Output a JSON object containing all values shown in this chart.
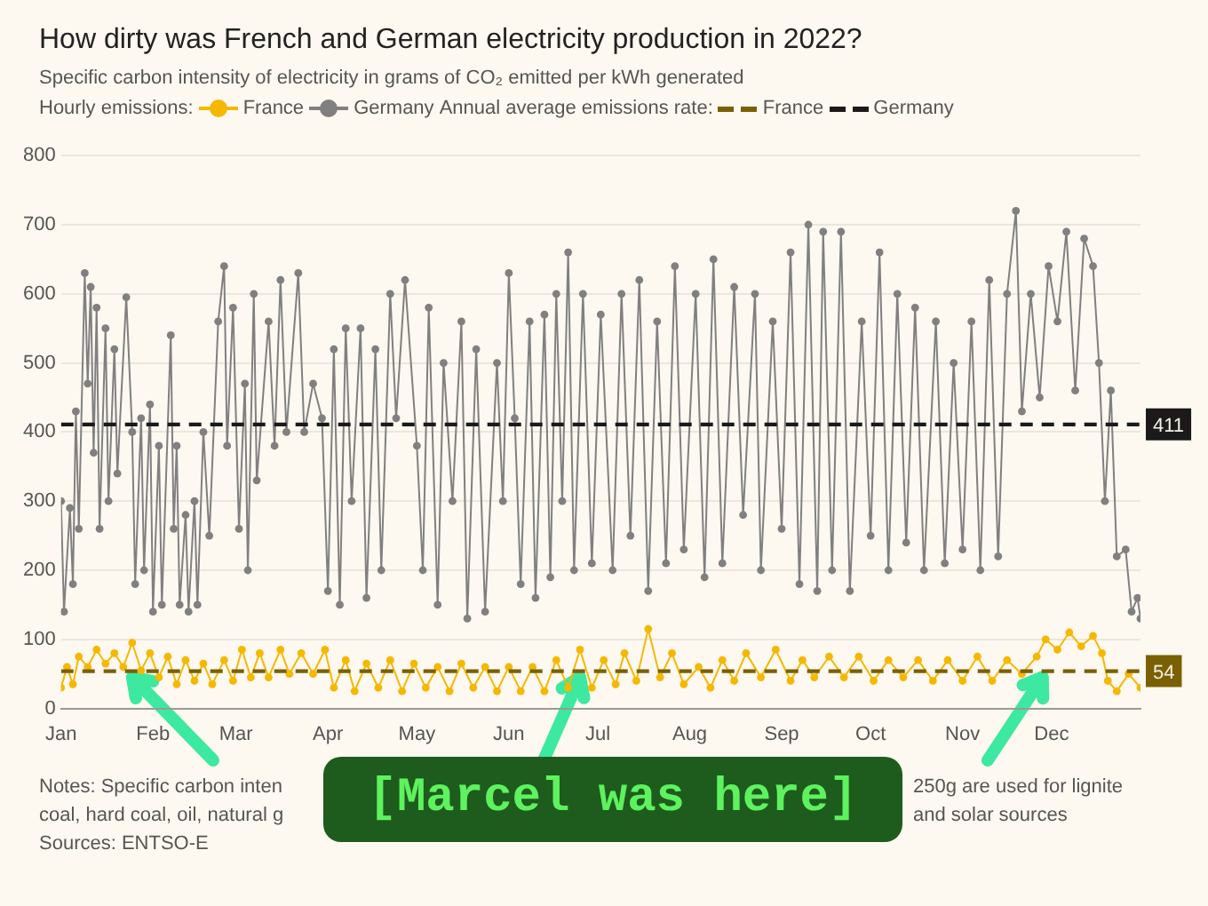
{
  "chart_data": {
    "type": "line",
    "title": "How dirty was French and German electricity production in 2022?",
    "subtitle": "Specific carbon intensity of electricity in grams of CO₂ emitted per kWh generated",
    "legend_title": "Hourly emissions:",
    "legend": "top left",
    "grid": "y",
    "marker": "circle",
    "xlim": [
      "--01-01",
      "--12-31"
    ],
    "xticks": [
      {
        "value": "--01-01",
        "label": "Jan"
      },
      {
        "value": "--02-01",
        "label": "Feb"
      },
      {
        "value": "--03-01",
        "label": "Mar"
      },
      {
        "value": "--04-01",
        "label": "Apr"
      },
      {
        "value": "--05-01",
        "label": "May"
      },
      {
        "value": "--06-01",
        "label": "Jun"
      },
      {
        "value": "--07-01",
        "label": "Jul"
      },
      {
        "value": "--08-01",
        "label": "Aug"
      },
      {
        "value": "--09-01",
        "label": "Sep"
      },
      {
        "value": "--10-01",
        "label": "Oct"
      },
      {
        "value": "--11-01",
        "label": "Nov"
      },
      {
        "value": "--12-01",
        "label": "Dec"
      }
    ],
    "ylim": [
      0,
      800
    ],
    "yticks": [
      0,
      100,
      200,
      300,
      400,
      500,
      600,
      700,
      800
    ],
    "series": [
      {
        "name": "France",
        "color": "#f5b800",
        "x": [
          "--01-01",
          "--01-03",
          "--01-05",
          "--01-07",
          "--01-10",
          "--01-13",
          "--01-16",
          "--01-19",
          "--01-22",
          "--01-25",
          "--01-28",
          "--01-31",
          "--02-03",
          "--02-06",
          "--02-09",
          "--02-12",
          "--02-15",
          "--02-18",
          "--02-21",
          "--02-25",
          "--02-28",
          "--03-03",
          "--03-06",
          "--03-09",
          "--03-12",
          "--03-16",
          "--03-19",
          "--03-23",
          "--03-27",
          "--03-31",
          "--04-03",
          "--04-07",
          "--04-10",
          "--04-14",
          "--04-18",
          "--04-22",
          "--04-26",
          "--04-30",
          "--05-04",
          "--05-08",
          "--05-12",
          "--05-16",
          "--05-20",
          "--05-24",
          "--05-28",
          "--06-01",
          "--06-05",
          "--06-09",
          "--06-13",
          "--06-17",
          "--06-21",
          "--06-25",
          "--06-29",
          "--07-03",
          "--07-07",
          "--07-10",
          "--07-14",
          "--07-18",
          "--07-22",
          "--07-26",
          "--07-30",
          "--08-04",
          "--08-08",
          "--08-12",
          "--08-16",
          "--08-20",
          "--08-25",
          "--08-30",
          "--09-04",
          "--09-08",
          "--09-12",
          "--09-17",
          "--09-22",
          "--09-27",
          "--10-02",
          "--10-07",
          "--10-12",
          "--10-17",
          "--10-22",
          "--10-27",
          "--11-01",
          "--11-06",
          "--11-11",
          "--11-16",
          "--11-21",
          "--11-26",
          "--11-29",
          "--12-03",
          "--12-07",
          "--12-11",
          "--12-15",
          "--12-18",
          "--12-20",
          "--12-23",
          "--12-27",
          "--12-31"
        ],
        "values": [
          30,
          60,
          35,
          75,
          60,
          85,
          65,
          80,
          60,
          95,
          55,
          80,
          45,
          75,
          35,
          70,
          40,
          65,
          35,
          70,
          40,
          85,
          45,
          80,
          45,
          85,
          50,
          80,
          50,
          85,
          30,
          70,
          25,
          65,
          30,
          70,
          25,
          65,
          30,
          60,
          25,
          65,
          30,
          60,
          25,
          60,
          25,
          60,
          25,
          70,
          30,
          85,
          30,
          70,
          35,
          80,
          40,
          115,
          45,
          80,
          35,
          60,
          30,
          70,
          40,
          80,
          45,
          85,
          40,
          70,
          45,
          75,
          45,
          75,
          40,
          70,
          45,
          70,
          40,
          70,
          40,
          75,
          40,
          70,
          50,
          75,
          100,
          85,
          110,
          90,
          105,
          80,
          40,
          25,
          50,
          30
        ]
      },
      {
        "name": "Germany",
        "color": "#808080",
        "x": [
          "--01-01",
          "--01-02",
          "--01-04",
          "--01-05",
          "--01-06",
          "--01-07",
          "--01-09",
          "--01-10",
          "--01-11",
          "--01-12",
          "--01-13",
          "--01-14",
          "--01-16",
          "--01-17",
          "--01-19",
          "--01-20",
          "--01-23",
          "--01-25",
          "--01-26",
          "--01-28",
          "--01-29",
          "--01-31",
          "--02-01",
          "--02-03",
          "--02-04",
          "--02-07",
          "--02-08",
          "--02-09",
          "--02-10",
          "--02-12",
          "--02-13",
          "--02-15",
          "--02-16",
          "--02-18",
          "--02-20",
          "--02-23",
          "--02-25",
          "--02-26",
          "--02-28",
          "--03-02",
          "--03-04",
          "--03-05",
          "--03-07",
          "--03-08",
          "--03-12",
          "--03-14",
          "--03-16",
          "--03-18",
          "--03-22",
          "--03-24",
          "--03-27",
          "--03-30",
          "--04-01",
          "--04-03",
          "--04-05",
          "--04-07",
          "--04-09",
          "--04-12",
          "--04-14",
          "--04-17",
          "--04-19",
          "--04-22",
          "--04-24",
          "--04-27",
          "--05-01",
          "--05-03",
          "--05-05",
          "--05-08",
          "--05-10",
          "--05-13",
          "--05-16",
          "--05-18",
          "--05-21",
          "--05-24",
          "--05-28",
          "--05-30",
          "--06-01",
          "--06-03",
          "--06-05",
          "--06-08",
          "--06-10",
          "--06-13",
          "--06-15",
          "--06-17",
          "--06-19",
          "--06-21",
          "--06-23",
          "--06-26",
          "--06-29",
          "--07-02",
          "--07-06",
          "--07-09",
          "--07-12",
          "--07-15",
          "--07-18",
          "--07-21",
          "--07-24",
          "--07-27",
          "--07-30",
          "--08-03",
          "--08-06",
          "--08-09",
          "--08-12",
          "--08-16",
          "--08-19",
          "--08-23",
          "--08-25",
          "--08-29",
          "--09-01",
          "--09-04",
          "--09-07",
          "--09-10",
          "--09-13",
          "--09-15",
          "--09-18",
          "--09-21",
          "--09-24",
          "--09-28",
          "--10-01",
          "--10-04",
          "--10-07",
          "--10-10",
          "--10-13",
          "--10-16",
          "--10-19",
          "--10-23",
          "--10-26",
          "--10-29",
          "--11-01",
          "--11-04",
          "--11-07",
          "--11-10",
          "--11-13",
          "--11-16",
          "--11-19",
          "--11-21",
          "--11-24",
          "--11-27",
          "--11-30",
          "--12-03",
          "--12-06",
          "--12-09",
          "--12-12",
          "--12-15",
          "--12-17",
          "--12-19",
          "--12-21",
          "--12-23",
          "--12-26",
          "--12-28",
          "--12-30",
          "--12-31"
        ],
        "values": [
          300,
          140,
          290,
          180,
          430,
          260,
          630,
          470,
          610,
          370,
          580,
          260,
          550,
          300,
          520,
          340,
          595,
          400,
          180,
          420,
          200,
          440,
          140,
          380,
          150,
          540,
          260,
          380,
          150,
          280,
          140,
          300,
          150,
          400,
          250,
          560,
          640,
          380,
          580,
          260,
          470,
          200,
          600,
          330,
          560,
          380,
          620,
          400,
          630,
          400,
          470,
          420,
          170,
          520,
          150,
          550,
          300,
          550,
          160,
          520,
          200,
          600,
          420,
          620,
          380,
          200,
          580,
          150,
          500,
          300,
          560,
          130,
          520,
          140,
          500,
          300,
          630,
          420,
          180,
          560,
          160,
          570,
          190,
          600,
          300,
          660,
          200,
          600,
          210,
          570,
          200,
          600,
          250,
          620,
          170,
          560,
          210,
          640,
          230,
          600,
          190,
          650,
          210,
          610,
          280,
          600,
          200,
          560,
          260,
          660,
          180,
          700,
          170,
          690,
          200,
          690,
          170,
          560,
          250,
          660,
          200,
          600,
          240,
          580,
          200,
          560,
          210,
          500,
          230,
          560,
          200,
          620,
          220,
          600,
          720,
          430,
          600,
          450,
          640,
          560,
          690,
          460,
          680,
          640,
          500,
          300,
          460,
          220,
          230,
          140,
          160,
          130
        ]
      },
      {
        "name": "France",
        "color": "#7a6000",
        "type": "line",
        "marker": "none",
        "line_style": "dashed",
        "x": [
          "--01-01",
          "--12-31"
        ],
        "values": [
          54,
          54
        ],
        "value_labels": [
          null,
          "54"
        ]
      },
      {
        "name": "Germany",
        "color": "#1a1a1a",
        "type": "line",
        "marker": "none",
        "line_style": "dashed",
        "x": [
          "--01-01",
          "--12-31"
        ],
        "values": [
          411,
          411
        ],
        "value_labels": [
          null,
          "411"
        ]
      }
    ],
    "annotations": [
      "Annual average emissions rate:",
      "Notes: Specific carbon inten",
      "250g are used for lignite",
      "coal, hard coal, oil, natural g",
      "and solar sources",
      "Sources: ENTSO-E",
      "[Marcel was here]"
    ]
  }
}
